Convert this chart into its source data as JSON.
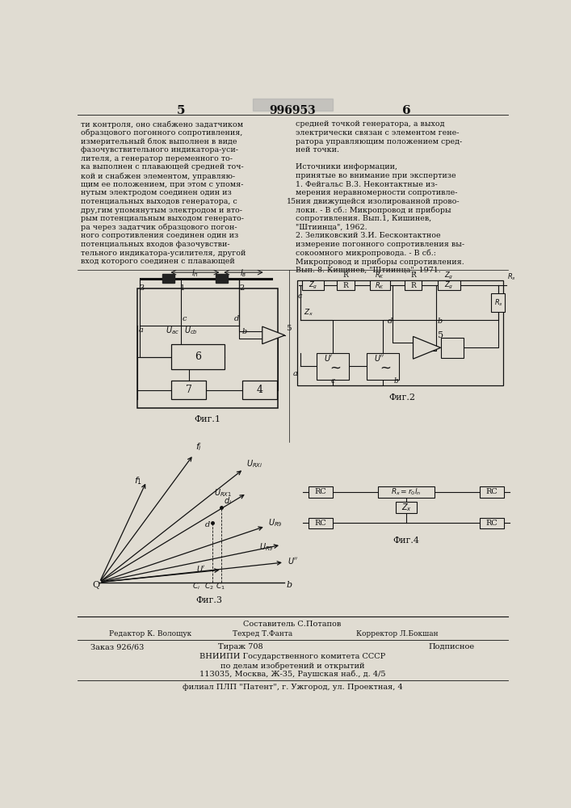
{
  "page_number_left": "5",
  "page_number_right": "6",
  "patent_number": "996953",
  "left_text": [
    "ти контроля, оно снабжено задатчиком",
    "образцового погонного сопротивления,",
    "измерительный блок выполнен в виде",
    "фазочувствительного индикатора-уси-",
    "лителя, а генератор переменного то-",
    "ка выполнен с плавающей средней точ-",
    "кой и снабжен элементом, управляю-",
    "щим ее положением, при этом с упомя-",
    "нутым электродом соединен один из",
    "потенциальных выходов генератора, с",
    "дру,гим упомянутым электродом и вто-",
    "рым потенциальным выходом генерато-",
    "ра через задатчик образцового погон-",
    "ного сопротивления соединен один из",
    "потенциальных входов фазочувстви-",
    "тельного индикатора-усилителя, другой",
    "вход которого соединен с плавающей"
  ],
  "right_text": [
    "средней точкой генератора, а выход",
    "электрически связан с элементом гене-",
    "ратора управляющим положением сред-",
    "ней точки.",
    "",
    "Источники информации,",
    "принятые во внимание при экспертизе",
    "1. Фейгальс В.3. Неконтактные из-",
    "мерения неравномерности сопротивле-",
    "ния движущейся изолированной прово-",
    "локи. - В сб.: Микропровод и приборы",
    "сопротивления. Вып.1, Кишинев,",
    "\"Штиинца\", 1962.",
    "2. Зеликовский З.И. Бесконтактное",
    "измерение погонного сопротивления вы-",
    "сокоомного микропровода. - В сб.:",
    "Микропровод и приборы сопротивления.",
    "Вып. 8. Кишинев, \"Штиинца\", 1971."
  ],
  "line_ref_15": "15",
  "fig1_caption": "Фиг.1",
  "fig2_caption": "Фиг.2",
  "fig3_caption": "Фиг.3",
  "fig4_caption": "Фиг.4",
  "bottom_composer": "Составитель С.Потапов",
  "bottom_editor": "Редактор К. Волощук",
  "bottom_techred": "Техред Т.Фанта",
  "bottom_corrector": "Корректор Л.Бокшан",
  "bottom_order": "Заказ 926/63",
  "bottom_tirazh": "Тираж 708",
  "bottom_podpisnoe": "Подписное",
  "bottom_vnipi": "ВНИИПИ Государственного комитета СССР",
  "bottom_podelam": "по делам изобретений и открытий",
  "bottom_address": "113035, Москва, Ж-35, Раушская наб., д. 4/5",
  "bottom_filial": "филиал ПЛП \"Патент\", г. Ужгород, ул. Проектная, 4",
  "bg_color": "#e0dcd2",
  "text_color": "#111111"
}
